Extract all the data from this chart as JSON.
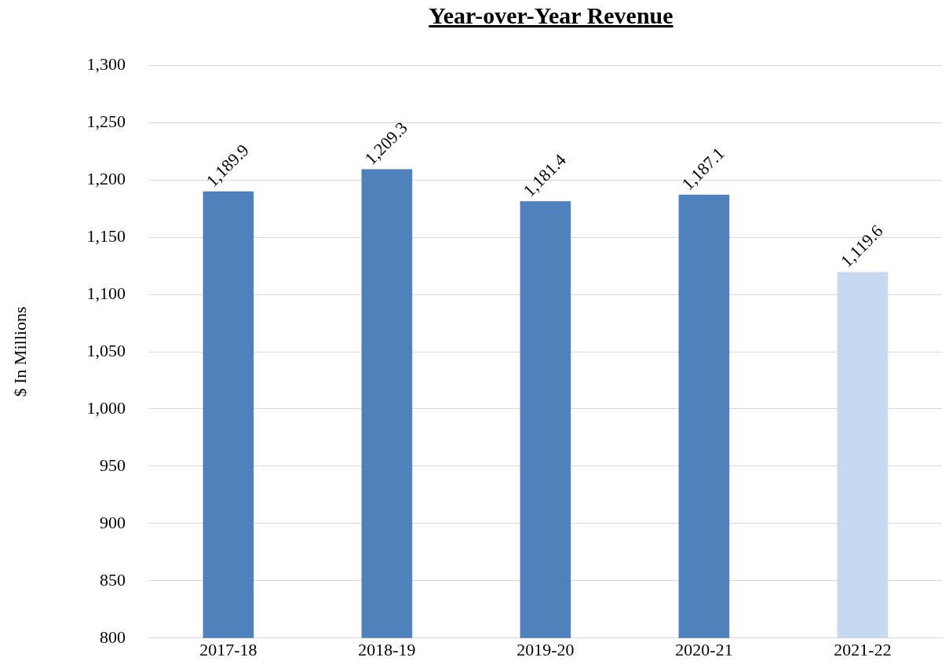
{
  "chart_data": {
    "type": "bar",
    "title": "Year-over-Year Revenue",
    "ylabel": "$ In Millions",
    "categories": [
      "2017-18",
      "2018-19",
      "2019-20",
      "2020-21",
      "2021-22"
    ],
    "values": [
      1189.9,
      1209.3,
      1181.4,
      1187.1,
      1119.6
    ],
    "colors": [
      "#4f81bd",
      "#4f81bd",
      "#4f81bd",
      "#4f81bd",
      "#c6d9f0"
    ],
    "value_labels": [
      "1,189.9",
      "1,209.3",
      "1,181.4",
      "1,187.1",
      "1,119.6"
    ],
    "ylim": [
      800,
      1300
    ],
    "yticks": [
      800,
      850,
      900,
      950,
      {
        "value": 1000,
        "label": "1,000"
      },
      {
        "value": 1050,
        "label": "1,050"
      },
      {
        "value": 1100,
        "label": "1,100"
      },
      {
        "value": 1150,
        "label": "1,150"
      },
      {
        "value": 1200,
        "label": "1,200"
      },
      {
        "value": 1250,
        "label": "1,250"
      },
      {
        "value": 1300,
        "label": "1,300"
      }
    ],
    "grid": "y"
  }
}
